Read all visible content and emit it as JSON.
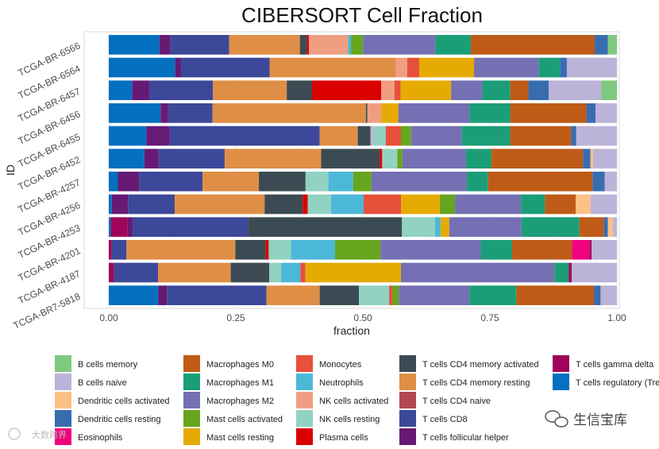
{
  "watermark": {
    "left_text": "大数跨界",
    "right_text": "生信宝库"
  },
  "chart_data": {
    "type": "stacked-bar-horizontal",
    "title": "CIBERSORT Cell Fraction",
    "xlabel": "fraction",
    "ylabel": "ID",
    "xlim": [
      0,
      1
    ],
    "x_ticks": [
      0,
      0.25,
      0.5,
      0.75,
      1
    ],
    "x_tick_labels": [
      "0.00",
      "0.25",
      "0.50",
      "0.75",
      "1.00"
    ],
    "legend": [
      {
        "name": "B cells memory",
        "color": "#7fc97f"
      },
      {
        "name": "B cells naive",
        "color": "#bcb3d8"
      },
      {
        "name": "Dendritic cells activated",
        "color": "#fdc086"
      },
      {
        "name": "Dendritic cells resting",
        "color": "#386cb0"
      },
      {
        "name": "Eosinophils",
        "color": "#f0027f"
      },
      {
        "name": "Macrophages M0",
        "color": "#bf5b17"
      },
      {
        "name": "Macrophages M1",
        "color": "#1b9e77"
      },
      {
        "name": "Macrophages M2",
        "color": "#7570b3"
      },
      {
        "name": "Mast cells activated",
        "color": "#66a61e"
      },
      {
        "name": "Mast cells resting",
        "color": "#e6ab02"
      },
      {
        "name": "Monocytes",
        "color": "#e7503b"
      },
      {
        "name": "Neutrophils",
        "color": "#4cb8d8"
      },
      {
        "name": "NK cells activated",
        "color": "#f09e82"
      },
      {
        "name": "NK cells resting",
        "color": "#91d2c2"
      },
      {
        "name": "Plasma cells",
        "color": "#db0000"
      },
      {
        "name": "T cells CD4 memory activated",
        "color": "#3c4b53"
      },
      {
        "name": "T cells CD4 memory resting",
        "color": "#df8e46"
      },
      {
        "name": "T cells CD4 naive",
        "color": "#b04a50"
      },
      {
        "name": "T cells CD8",
        "color": "#3c4899"
      },
      {
        "name": "T cells follicular helper",
        "color": "#671a74"
      },
      {
        "name": "T cells gamma delta",
        "color": "#a0045a"
      },
      {
        "name": "T cells regulatory (Tregs)",
        "color": "#0470c0"
      }
    ],
    "samples": [
      {
        "id": "TCGA-BR-6566",
        "segments": [
          [
            "T cells regulatory (Tregs)",
            0.1
          ],
          [
            "T cells follicular helper",
            0.022
          ],
          [
            "T cells CD8",
            0.116
          ],
          [
            "T cells CD4 memory resting",
            0.14
          ],
          [
            "T cells CD4 memory activated",
            0.014
          ],
          [
            "Plasma cells",
            0.004
          ],
          [
            "NK cells activated",
            0.077
          ],
          [
            "Neutrophils",
            0.006
          ],
          [
            "Mast cells activated",
            0.024
          ],
          [
            "Macrophages M2",
            0.143
          ],
          [
            "Macrophages M1",
            0.07
          ],
          [
            "Macrophages M0",
            0.245
          ],
          [
            "Dendritic cells resting",
            0.026
          ],
          [
            "B cells memory",
            0.018
          ]
        ]
      },
      {
        "id": "TCGA-BR-6564",
        "segments": [
          [
            "T cells regulatory (Tregs)",
            0.126
          ],
          [
            "T cells follicular helper",
            0.011
          ],
          [
            "T cells CD8",
            0.168
          ],
          [
            "T cells CD4 memory resting",
            0.24
          ],
          [
            "NK cells activated",
            0.021
          ],
          [
            "Monocytes",
            0.023
          ],
          [
            "Mast cells resting",
            0.104
          ],
          [
            "Macrophages M2",
            0.123
          ],
          [
            "Macrophages M1",
            0.04
          ],
          [
            "Dendritic cells resting",
            0.013
          ],
          [
            "B cells naive",
            0.095
          ]
        ]
      },
      {
        "id": "TCGA-BR-6457",
        "segments": [
          [
            "T cells regulatory (Tregs)",
            0.046
          ],
          [
            "T cells follicular helper",
            0.034
          ],
          [
            "T cells CD8",
            0.126
          ],
          [
            "T cells CD4 memory resting",
            0.146
          ],
          [
            "T cells CD4 memory activated",
            0.05
          ],
          [
            "Plasma cells",
            0.137
          ],
          [
            "NK cells activated",
            0.026
          ],
          [
            "Monocytes",
            0.012
          ],
          [
            "Mast cells resting",
            0.1
          ],
          [
            "Macrophages M2",
            0.062
          ],
          [
            "Macrophages M1",
            0.055
          ],
          [
            "Macrophages M0",
            0.036
          ],
          [
            "Dendritic cells resting",
            0.04
          ],
          [
            "B cells naive",
            0.104
          ],
          [
            "B cells memory",
            0.031
          ]
        ]
      },
      {
        "id": "TCGA-BR-6456",
        "segments": [
          [
            "T cells regulatory (Tregs)",
            0.102
          ],
          [
            "T cells follicular helper",
            0.015
          ],
          [
            "T cells CD8",
            0.087
          ],
          [
            "T cells CD4 memory resting",
            0.302
          ],
          [
            "T cells CD4 memory activated",
            0.003
          ],
          [
            "NK cells activated",
            0.027
          ],
          [
            "Mast cells resting",
            0.034
          ],
          [
            "Macrophages M2",
            0.14
          ],
          [
            "Macrophages M1",
            0.08
          ],
          [
            "Macrophages M0",
            0.15
          ],
          [
            "Dendritic cells resting",
            0.018
          ],
          [
            "B cells naive",
            0.042
          ]
        ]
      },
      {
        "id": "TCGA-BR-6455",
        "segments": [
          [
            "T cells regulatory (Tregs)",
            0.074
          ],
          [
            "T cells follicular helper",
            0.046
          ],
          [
            "T cells CD8",
            0.295
          ],
          [
            "T cells CD4 memory resting",
            0.075
          ],
          [
            "T cells CD4 memory activated",
            0.025
          ],
          [
            "B cells naive",
            0.005
          ],
          [
            "NK cells resting",
            0.025
          ],
          [
            "Monocytes",
            0.03
          ],
          [
            "Mast cells activated",
            0.02
          ],
          [
            "Macrophages M2",
            0.1
          ],
          [
            "Macrophages M1",
            0.095
          ],
          [
            "Macrophages M0",
            0.12
          ],
          [
            "Dendritic cells resting",
            0.01
          ],
          [
            "B cells naive",
            0.08
          ]
        ]
      },
      {
        "id": "TCGA-BR-6452",
        "segments": [
          [
            "T cells regulatory (Tregs)",
            0.07
          ],
          [
            "T cells follicular helper",
            0.028
          ],
          [
            "T cells CD8",
            0.13
          ],
          [
            "T cells CD4 memory resting",
            0.19
          ],
          [
            "T cells CD4 memory activated",
            0.115
          ],
          [
            "Plasma cells",
            0.005
          ],
          [
            "NK cells resting",
            0.03
          ],
          [
            "Mast cells activated",
            0.01
          ],
          [
            "Macrophages M2",
            0.125
          ],
          [
            "Macrophages M1",
            0.05
          ],
          [
            "Macrophages M0",
            0.18
          ],
          [
            "Dendritic cells resting",
            0.015
          ],
          [
            "Dendritic cells activated",
            0.005
          ],
          [
            "B cells naive",
            0.047
          ]
        ]
      },
      {
        "id": "TCGA-BR-4257",
        "segments": [
          [
            "T cells regulatory (Tregs)",
            0.018
          ],
          [
            "T cells follicular helper",
            0.042
          ],
          [
            "T cells CD8",
            0.125
          ],
          [
            "T cells CD4 memory resting",
            0.111
          ],
          [
            "T cells CD4 memory activated",
            0.092
          ],
          [
            "NK cells resting",
            0.045
          ],
          [
            "Neutrophils",
            0.049
          ],
          [
            "Mast cells activated",
            0.036
          ],
          [
            "Macrophages M2",
            0.188
          ],
          [
            "Macrophages M1",
            0.042
          ],
          [
            "Macrophages M0",
            0.206
          ],
          [
            "Dendritic cells resting",
            0.024
          ],
          [
            "B cells naive",
            0.024
          ]
        ]
      },
      {
        "id": "TCGA-BR-4256",
        "segments": [
          [
            "T cells regulatory (Tregs)",
            0.006
          ],
          [
            "T cells follicular helper",
            0.032
          ],
          [
            "T cells CD8",
            0.092
          ],
          [
            "T cells CD4 memory resting",
            0.177
          ],
          [
            "T cells CD4 memory activated",
            0.075
          ],
          [
            "Plasma cells",
            0.01
          ],
          [
            "NK cells resting",
            0.046
          ],
          [
            "Neutrophils",
            0.064
          ],
          [
            "Monocytes",
            0.074
          ],
          [
            "Mast cells resting",
            0.076
          ],
          [
            "Mast cells activated",
            0.03
          ],
          [
            "Macrophages M2",
            0.13
          ],
          [
            "Macrophages M1",
            0.047
          ],
          [
            "Macrophages M0",
            0.061
          ],
          [
            "Dendritic cells activated",
            0.029
          ],
          [
            "B cells naive",
            0.052
          ]
        ]
      },
      {
        "id": "TCGA-BR-4253",
        "segments": [
          [
            "T cells regulatory (Tregs)",
            0.004
          ],
          [
            "T cells gamma delta",
            0.033
          ],
          [
            "T cells follicular helper",
            0.01
          ],
          [
            "T cells CD8",
            0.227
          ],
          [
            "T cells CD4 memory activated",
            0.303
          ],
          [
            "NK cells resting",
            0.065
          ],
          [
            "Neutrophils",
            0.011
          ],
          [
            "Mast cells resting",
            0.017
          ],
          [
            "Macrophages M2",
            0.142
          ],
          [
            "Macrophages M1",
            0.114
          ],
          [
            "Macrophages M0",
            0.048
          ],
          [
            "Dendritic cells resting",
            0.008
          ],
          [
            "Dendritic cells activated",
            0.01
          ],
          [
            "B cells naive",
            0.008
          ]
        ]
      },
      {
        "id": "TCGA-BR-4201",
        "segments": [
          [
            "T cells gamma delta",
            0.006
          ],
          [
            "T cells CD8",
            0.029
          ],
          [
            "T cells CD4 memory resting",
            0.215
          ],
          [
            "T cells CD4 memory activated",
            0.06
          ],
          [
            "Plasma cells",
            0.006
          ],
          [
            "NK cells resting",
            0.044
          ],
          [
            "Neutrophils",
            0.087
          ],
          [
            "Mast cells activated",
            0.09
          ],
          [
            "Macrophages M2",
            0.198
          ],
          [
            "Macrophages M1",
            0.062
          ],
          [
            "Macrophages M0",
            0.118
          ],
          [
            "Eosinophils",
            0.035
          ],
          [
            "T cells gamma delta",
            0.004
          ],
          [
            "B cells naive",
            0.05
          ]
        ]
      },
      {
        "id": "TCGA-BR-4187",
        "segments": [
          [
            "T cells gamma delta",
            0.01
          ],
          [
            "T cells CD8",
            0.087
          ],
          [
            "T cells CD4 memory resting",
            0.143
          ],
          [
            "T cells CD4 memory activated",
            0.076
          ],
          [
            "NK cells resting",
            0.023
          ],
          [
            "Neutrophils",
            0.038
          ],
          [
            "Monocytes",
            0.01
          ],
          [
            "Mast cells resting",
            0.188
          ],
          [
            "Macrophages M2",
            0.302
          ],
          [
            "Macrophages M1",
            0.028
          ],
          [
            "T cells gamma delta",
            0.006
          ],
          [
            "B cells naive",
            0.089
          ]
        ]
      },
      {
        "id": "TCGA-BR7-5818",
        "segments": [
          [
            "T cells regulatory (Tregs)",
            0.097
          ],
          [
            "T cells follicular helper",
            0.017
          ],
          [
            "T cells CD8",
            0.195
          ],
          [
            "T cells CD4 memory resting",
            0.104
          ],
          [
            "T cells CD4 memory activated",
            0.077
          ],
          [
            "NK cells resting",
            0.059
          ],
          [
            "Monocytes",
            0.006
          ],
          [
            "Mast cells activated",
            0.013
          ],
          [
            "Macrophages M2",
            0.138
          ],
          [
            "Macrophages M1",
            0.092
          ],
          [
            "Macrophages M0",
            0.152
          ],
          [
            "Dendritic cells resting",
            0.013
          ],
          [
            "B cells naive",
            0.032
          ]
        ]
      }
    ]
  }
}
